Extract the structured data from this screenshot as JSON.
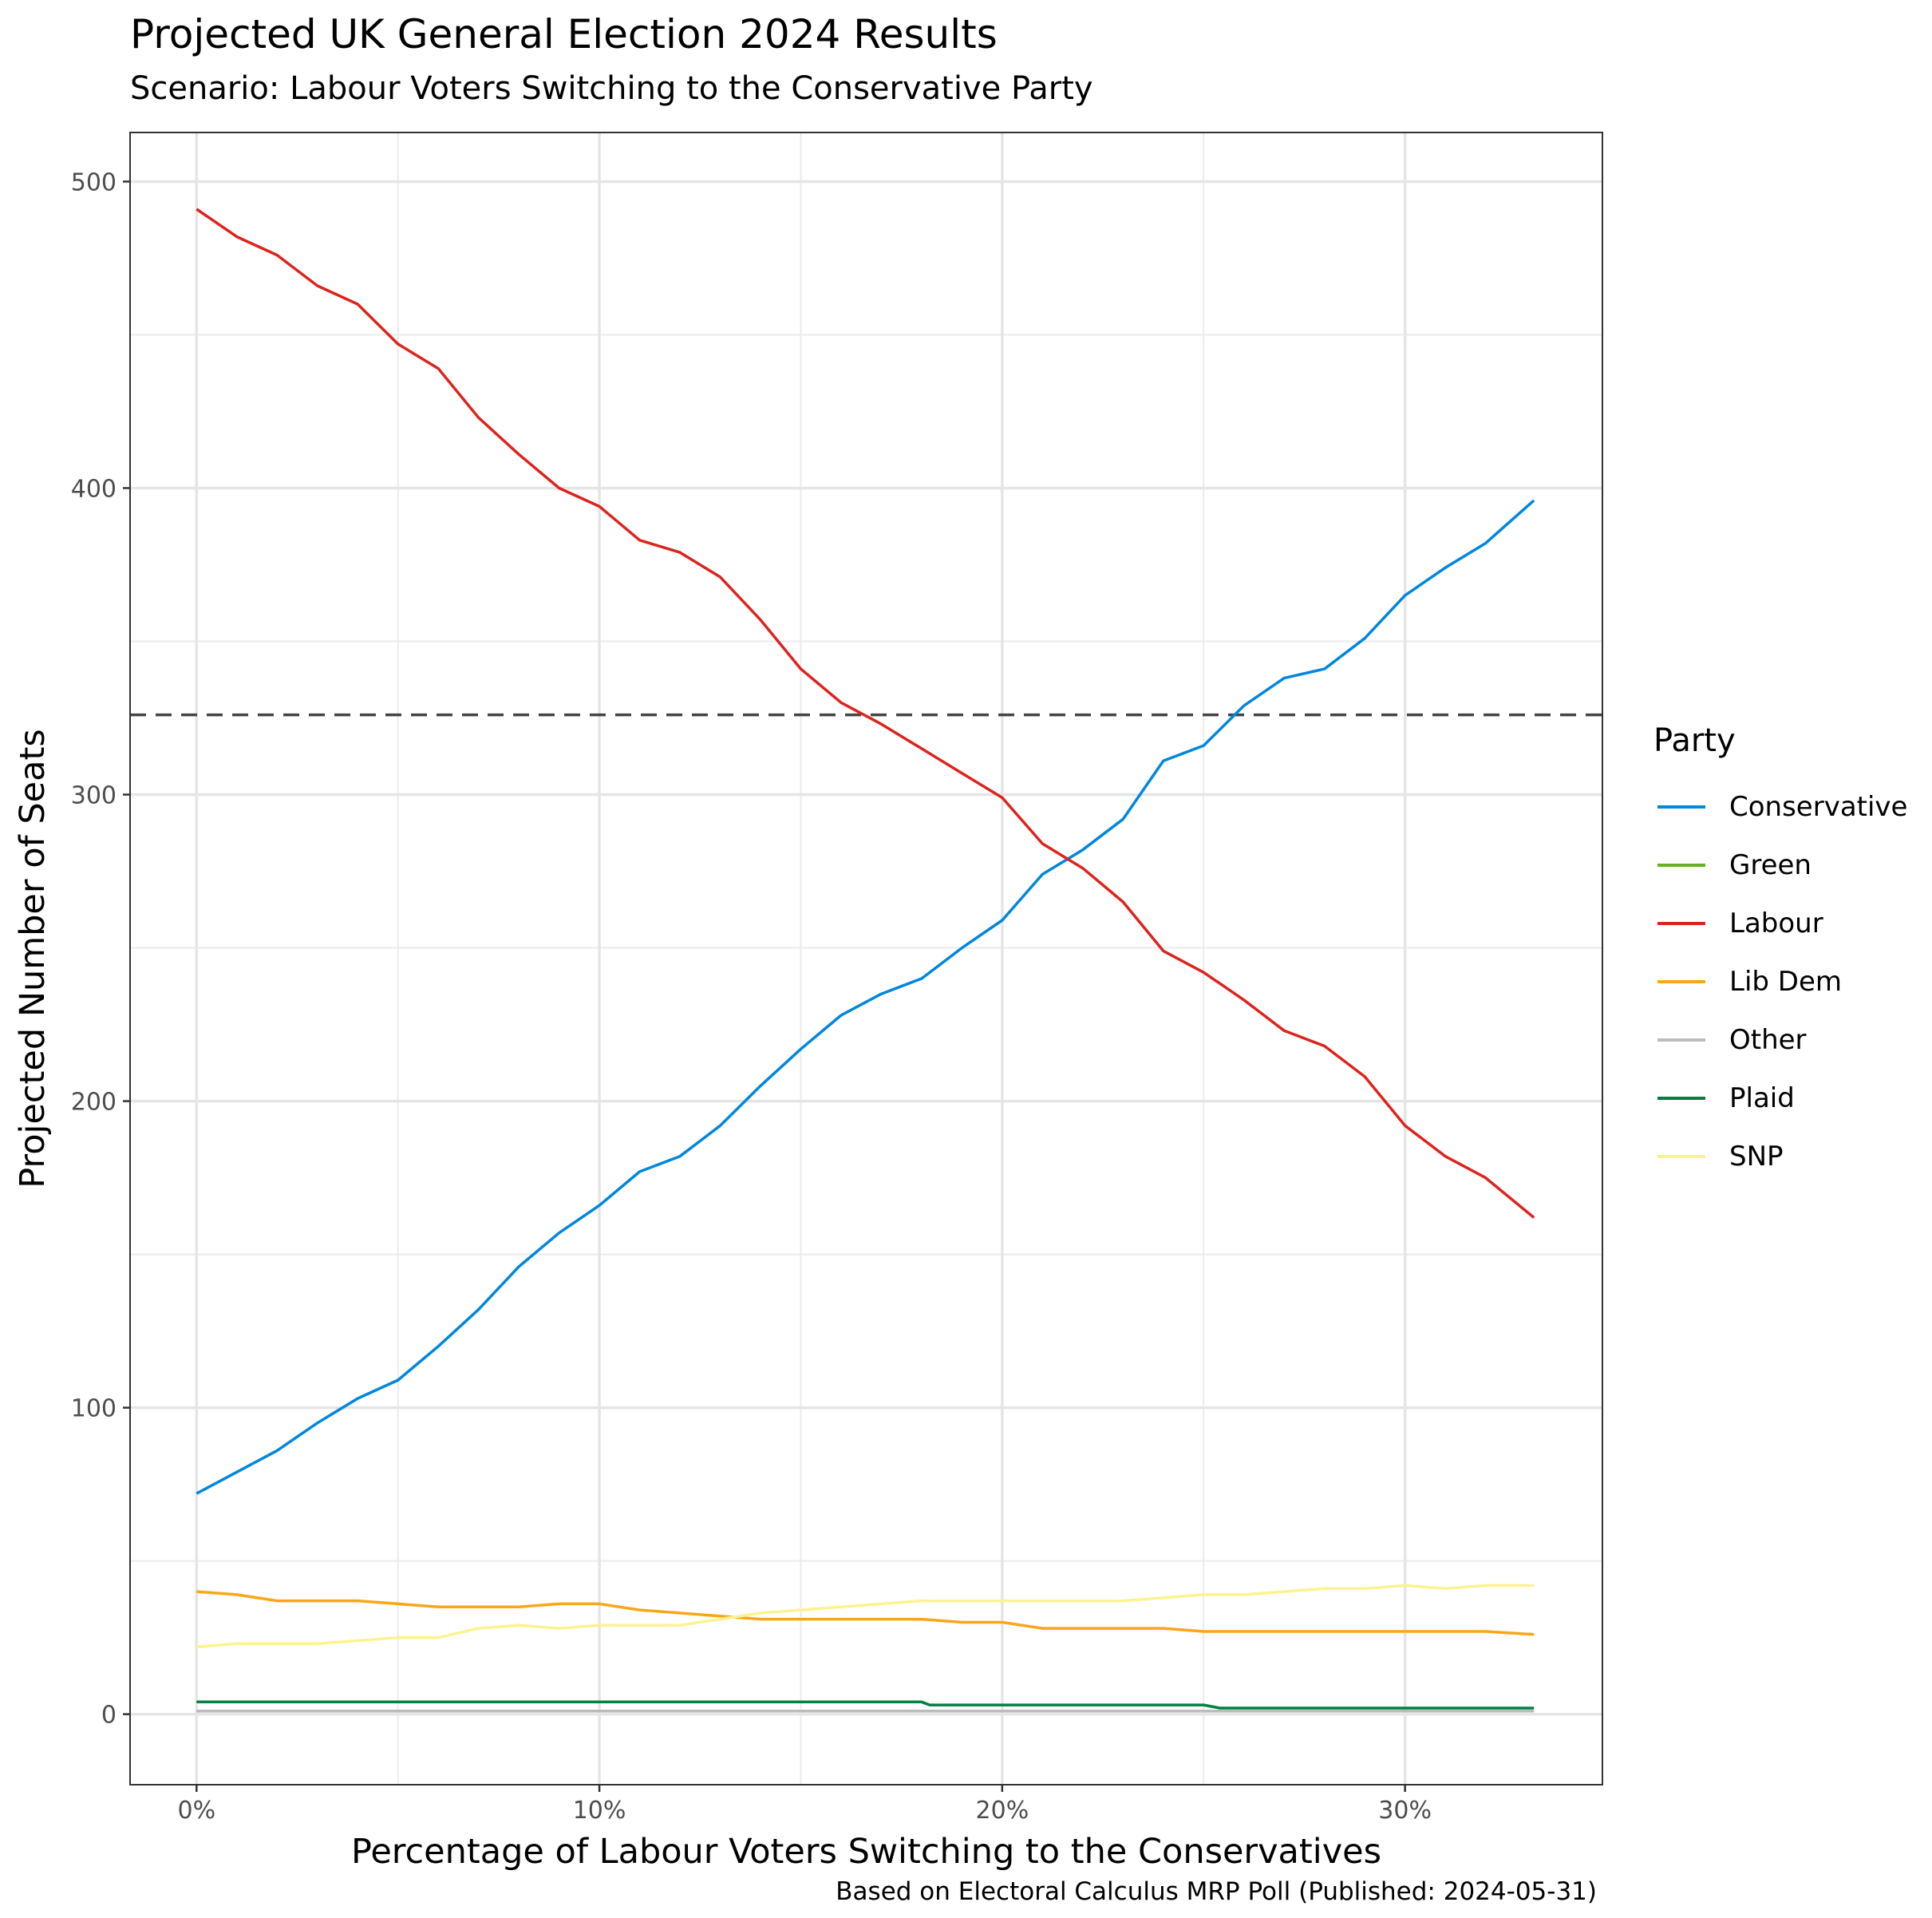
{
  "chart_data": {
    "type": "line",
    "title": "Projected UK General Election 2024 Results",
    "subtitle": "Scenario: Labour Voters Switching to the Conservative Party",
    "caption": "Based on Electoral Calculus MRP Poll (Published: 2024-05-31)",
    "xlabel": "Percentage of Labour Voters Switching to the Conservatives",
    "ylabel": "Projected Number of Seats",
    "x_ticks": [
      {
        "value": 0,
        "label": "0%"
      },
      {
        "value": 10,
        "label": "10%"
      },
      {
        "value": 20,
        "label": "20%"
      },
      {
        "value": 30,
        "label": "30%"
      }
    ],
    "y_ticks": [
      {
        "value": 0,
        "label": "0"
      },
      {
        "value": 100,
        "label": "100"
      },
      {
        "value": 200,
        "label": "200"
      },
      {
        "value": 300,
        "label": "300"
      },
      {
        "value": 400,
        "label": "400"
      },
      {
        "value": 500,
        "label": "500"
      }
    ],
    "xlim": [
      -1.65,
      34.9
    ],
    "ylim": [
      -23,
      516
    ],
    "grid": true,
    "majority_line": {
      "y": 326,
      "style": "dashed"
    },
    "legend": {
      "title": "Party",
      "position": "right"
    },
    "series": [
      {
        "name": "Conservative",
        "color": "#0087DC",
        "x": [
          0,
          1,
          2,
          3,
          4,
          5,
          6,
          7,
          8,
          9,
          10,
          11,
          12,
          13,
          14,
          15,
          16,
          17,
          18,
          19,
          20,
          21,
          22,
          23,
          24,
          25,
          26,
          27,
          28,
          29,
          30,
          31,
          32,
          33.2
        ],
        "y": [
          72,
          79,
          86,
          95,
          103,
          109,
          120,
          132,
          146,
          157,
          166,
          177,
          182,
          192,
          205,
          217,
          228,
          235,
          240,
          250,
          259,
          274,
          282,
          292,
          311,
          316,
          329,
          338,
          341,
          351,
          365,
          374,
          382,
          396
        ]
      },
      {
        "name": "Green",
        "color": "#6AB023",
        "x": [
          0,
          1,
          2,
          3,
          4,
          5.1
        ],
        "y": [
          1,
          1,
          1,
          1,
          1,
          1
        ]
      },
      {
        "name": "Labour",
        "color": "#DC241F",
        "x": [
          0,
          1,
          2,
          3,
          4,
          5,
          6,
          7,
          8,
          9,
          10,
          11,
          12,
          13,
          14,
          15,
          16,
          17,
          18,
          19,
          20,
          21,
          22,
          23,
          24,
          25,
          26,
          27,
          28,
          29,
          30,
          31,
          32,
          33.2
        ],
        "y": [
          491,
          482,
          476,
          466,
          460,
          447,
          439,
          423,
          411,
          400,
          394,
          383,
          379,
          371,
          357,
          341,
          330,
          323,
          315,
          307,
          299,
          284,
          276,
          265,
          249,
          242,
          233,
          223,
          218,
          208,
          192,
          182,
          175,
          162
        ]
      },
      {
        "name": "Lib Dem",
        "color": "#FAA61A",
        "x": [
          0,
          1,
          2,
          3,
          4,
          5,
          6,
          7,
          8,
          9,
          10,
          11,
          12,
          13,
          14,
          15,
          16,
          17,
          18,
          19,
          20,
          21,
          22,
          23,
          24,
          25,
          26,
          27,
          28,
          29,
          30,
          31,
          32,
          33.2
        ],
        "y": [
          40,
          39,
          37,
          37,
          37,
          36,
          35,
          35,
          35,
          36,
          36,
          34,
          33,
          32,
          31,
          31,
          31,
          31,
          31,
          30,
          30,
          28,
          28,
          28,
          28,
          27,
          27,
          27,
          27,
          27,
          27,
          27,
          27,
          26
        ]
      },
      {
        "name": "Other",
        "color": "#BBBBBB",
        "x": [
          0,
          5,
          10,
          15,
          20,
          25,
          30,
          33.2
        ],
        "y": [
          1,
          1,
          1,
          1,
          1,
          1,
          1,
          1
        ]
      },
      {
        "name": "Plaid",
        "color": "#008142",
        "x": [
          0,
          5,
          10,
          15,
          18,
          18.2,
          25,
          25.4,
          30,
          33.2
        ],
        "y": [
          4,
          4,
          4,
          4,
          4,
          3,
          3,
          2,
          2,
          2
        ]
      },
      {
        "name": "SNP",
        "color": "#FDF38E",
        "x": [
          0,
          1,
          2,
          3,
          4,
          5,
          6,
          7,
          8,
          9,
          10,
          11,
          12,
          13,
          14,
          15,
          16,
          17,
          18,
          19,
          20,
          21,
          22,
          23,
          24,
          25,
          26,
          27,
          28,
          29,
          30,
          31,
          32,
          33.2
        ],
        "y": [
          22,
          23,
          23,
          23,
          24,
          25,
          25,
          28,
          29,
          28,
          29,
          29,
          29,
          31,
          33,
          34,
          35,
          36,
          37,
          37,
          37,
          37,
          37,
          37,
          38,
          39,
          39,
          40,
          41,
          41,
          42,
          41,
          42,
          42
        ]
      }
    ]
  }
}
